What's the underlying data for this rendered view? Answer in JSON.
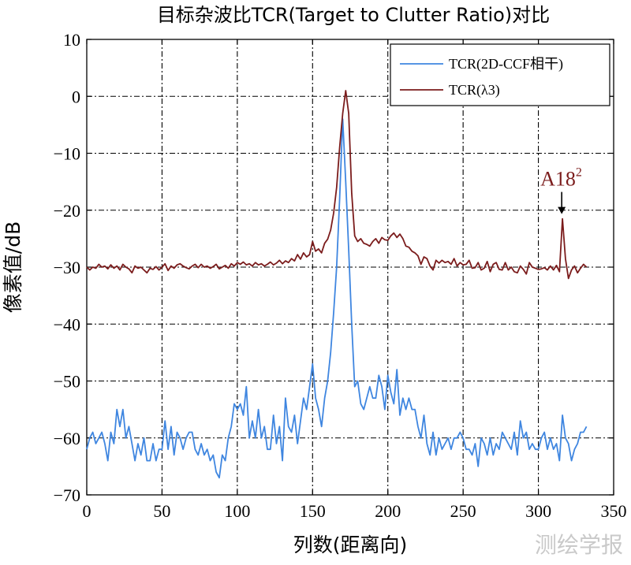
{
  "chart_data": {
    "type": "line",
    "title": "目标杂波比TCR(Target to Clutter Ratio)对比",
    "xlabel": "列数(距离向)",
    "ylabel": "像素值/dB",
    "xlim": [
      0,
      350
    ],
    "ylim": [
      -70,
      10
    ],
    "xticks": [
      "0",
      "50",
      "100",
      "150",
      "200",
      "250",
      "300",
      "350"
    ],
    "yticks": [
      "10",
      "0",
      "−10",
      "−20",
      "−30",
      "−40",
      "−50",
      "−60",
      "−70"
    ],
    "grid": true,
    "grid_style": "dash-dot",
    "legend_position": "top-right",
    "series": [
      {
        "name": "TCR(2D-CCF相干)",
        "color": "#3f86e0",
        "x": [
          0,
          2,
          4,
          6,
          8,
          10,
          12,
          14,
          16,
          18,
          20,
          22,
          24,
          26,
          28,
          30,
          32,
          34,
          36,
          38,
          40,
          42,
          44,
          46,
          48,
          50,
          52,
          54,
          56,
          58,
          60,
          62,
          64,
          66,
          68,
          70,
          72,
          74,
          76,
          78,
          80,
          82,
          84,
          86,
          88,
          90,
          92,
          94,
          96,
          98,
          100,
          102,
          104,
          106,
          108,
          110,
          112,
          114,
          116,
          118,
          120,
          122,
          124,
          126,
          128,
          130,
          132,
          134,
          136,
          138,
          140,
          142,
          144,
          146,
          148,
          150,
          152,
          154,
          156,
          158,
          160,
          162,
          164,
          166,
          168,
          170,
          172,
          174,
          176,
          178,
          180,
          182,
          184,
          186,
          188,
          190,
          192,
          194,
          196,
          198,
          200,
          202,
          204,
          206,
          208,
          210,
          212,
          214,
          216,
          218,
          220,
          222,
          224,
          226,
          228,
          230,
          232,
          234,
          236,
          238,
          240,
          242,
          244,
          246,
          248,
          250,
          252,
          254,
          256,
          258,
          260,
          262,
          264,
          266,
          268,
          270,
          272,
          274,
          276,
          278,
          280,
          282,
          284,
          286,
          288,
          290,
          292,
          294,
          296,
          298,
          300,
          302,
          304,
          306,
          308,
          310,
          312,
          314,
          316,
          318,
          320,
          322,
          324,
          326,
          328,
          330,
          332
        ],
        "y": [
          -62,
          -60,
          -59,
          -61,
          -60,
          -59,
          -61,
          -64,
          -59,
          -61,
          -55,
          -58,
          -55,
          -60,
          -58,
          -61,
          -64,
          -61,
          -63,
          -60,
          -64,
          -64,
          -61,
          -64,
          -62,
          -62,
          -57,
          -62,
          -58,
          -63,
          -59,
          -60,
          -62,
          -60,
          -59,
          -59,
          -62,
          -63,
          -61,
          -63,
          -62,
          -64,
          -63,
          -66,
          -67,
          -63,
          -64,
          -60,
          -58,
          -54,
          -55,
          -54,
          -56,
          -51,
          -60,
          -57,
          -60,
          -55,
          -60,
          -58,
          -62,
          -62,
          -56,
          -61,
          -58,
          -64,
          -53,
          -58,
          -59,
          -56,
          -61,
          -57,
          -53,
          -55,
          -51,
          -47,
          -53,
          -55,
          -58,
          -53,
          -50,
          -45,
          -38,
          -30,
          -18,
          -4,
          -15,
          -27,
          -40,
          -51,
          -50,
          -54,
          -55,
          -53,
          -51,
          -53,
          -53,
          -49,
          -51,
          -55,
          -49,
          -52,
          -54,
          -48,
          -56,
          -53,
          -55,
          -53,
          -55,
          -55,
          -58,
          -60,
          -56,
          -61,
          -63,
          -59,
          -63,
          -60,
          -62,
          -61,
          -60,
          -62,
          -60,
          -60,
          -59,
          -60,
          -62,
          -62,
          -63,
          -61,
          -65,
          -60,
          -61,
          -63,
          -60,
          -63,
          -61,
          -62,
          -59,
          -60,
          -61,
          -62,
          -59,
          -63,
          -57,
          -60,
          -59,
          -62,
          -61,
          -62,
          -62,
          -60,
          -59,
          -62,
          -60,
          -62,
          -61,
          -64,
          -56,
          -60,
          -61,
          -64,
          -62,
          -61,
          -59,
          -59,
          -58
        ]
      },
      {
        "name": "TCR(λ3)",
        "color": "#7b1c1c",
        "x": [
          0,
          2,
          4,
          6,
          8,
          10,
          12,
          14,
          16,
          18,
          20,
          22,
          24,
          26,
          28,
          30,
          32,
          34,
          36,
          38,
          40,
          42,
          44,
          46,
          48,
          50,
          52,
          54,
          56,
          58,
          60,
          62,
          64,
          66,
          68,
          70,
          72,
          74,
          76,
          78,
          80,
          82,
          84,
          86,
          88,
          90,
          92,
          94,
          96,
          98,
          100,
          102,
          104,
          106,
          108,
          110,
          112,
          114,
          116,
          118,
          120,
          122,
          124,
          126,
          128,
          130,
          132,
          134,
          136,
          138,
          140,
          142,
          144,
          146,
          148,
          150,
          152,
          154,
          156,
          158,
          160,
          162,
          164,
          166,
          168,
          170,
          172,
          174,
          176,
          178,
          180,
          182,
          184,
          186,
          188,
          190,
          192,
          194,
          196,
          198,
          200,
          202,
          204,
          206,
          208,
          210,
          212,
          214,
          216,
          218,
          220,
          222,
          224,
          226,
          228,
          230,
          232,
          234,
          236,
          238,
          240,
          242,
          244,
          246,
          248,
          250,
          252,
          254,
          256,
          258,
          260,
          262,
          264,
          266,
          268,
          270,
          272,
          274,
          276,
          278,
          280,
          282,
          284,
          286,
          288,
          290,
          292,
          294,
          296,
          298,
          300,
          302,
          304,
          306,
          308,
          310,
          312,
          314,
          316,
          318,
          320,
          322,
          324,
          326,
          328,
          330,
          332
        ],
        "y": [
          -30,
          -30.5,
          -30,
          -30.2,
          -29.5,
          -30,
          -29.8,
          -30.3,
          -29.6,
          -30.2,
          -29.8,
          -30.5,
          -29.5,
          -30,
          -30.3,
          -31,
          -29.8,
          -30.2,
          -30,
          -30.5,
          -31,
          -30.2,
          -30.4,
          -29.9,
          -30.5,
          -30,
          -29.4,
          -30.6,
          -29.8,
          -30.2,
          -29.6,
          -29.4,
          -29.8,
          -30.1,
          -30.3,
          -29.8,
          -29.5,
          -30.1,
          -29.5,
          -30,
          -29.8,
          -30.2,
          -29.9,
          -29.5,
          -30.3,
          -30,
          -29.7,
          -30.2,
          -29.4,
          -29.8,
          -29.2,
          -29.5,
          -29.1,
          -29.6,
          -29.4,
          -29.8,
          -29.2,
          -29.6,
          -29.4,
          -29.8,
          -29.5,
          -29.1,
          -29.6,
          -29.3,
          -28.8,
          -29.4,
          -28.9,
          -29.2,
          -28.5,
          -28.9,
          -27.8,
          -28.6,
          -27.5,
          -28.2,
          -27.8,
          -25.5,
          -27.2,
          -26.8,
          -27.5,
          -25.8,
          -25.1,
          -23.5,
          -20.5,
          -16,
          -9,
          -3,
          1,
          -3,
          -17,
          -24.5,
          -25.5,
          -25,
          -25.8,
          -26,
          -26.3,
          -25.5,
          -25,
          -25.8,
          -24.8,
          -25.2,
          -25.3,
          -24.5,
          -24,
          -24.8,
          -24.2,
          -25,
          -26.3,
          -26.5,
          -27.2,
          -27.5,
          -28,
          -29.5,
          -28.2,
          -28.5,
          -29.8,
          -30.5,
          -28.8,
          -29.3,
          -28.8,
          -29.2,
          -29,
          -29.5,
          -28.5,
          -29.8,
          -29.2,
          -29.6,
          -29.5,
          -28.8,
          -30.2,
          -30.1,
          -29.2,
          -30.5,
          -30.2,
          -29,
          -30.8,
          -29.5,
          -29.2,
          -30.4,
          -30.5,
          -29.2,
          -30.5,
          -30,
          -30.8,
          -31,
          -29.8,
          -30.4,
          -31.2,
          -29.2,
          -30,
          -30.2,
          -30.4,
          -30.3,
          -30.1,
          -30.5,
          -29.8,
          -30.5,
          -29.7,
          -30.8,
          -21.5,
          -28.5,
          -32,
          -30.5,
          -29.8,
          -31,
          -30.2,
          -29.5,
          -30
        ]
      }
    ],
    "annotations": [
      {
        "text": "A18",
        "superscript": "2",
        "x": 315.5,
        "y": -21.5,
        "color": "#7b1c1c"
      }
    ]
  },
  "watermark": "测绘学报"
}
